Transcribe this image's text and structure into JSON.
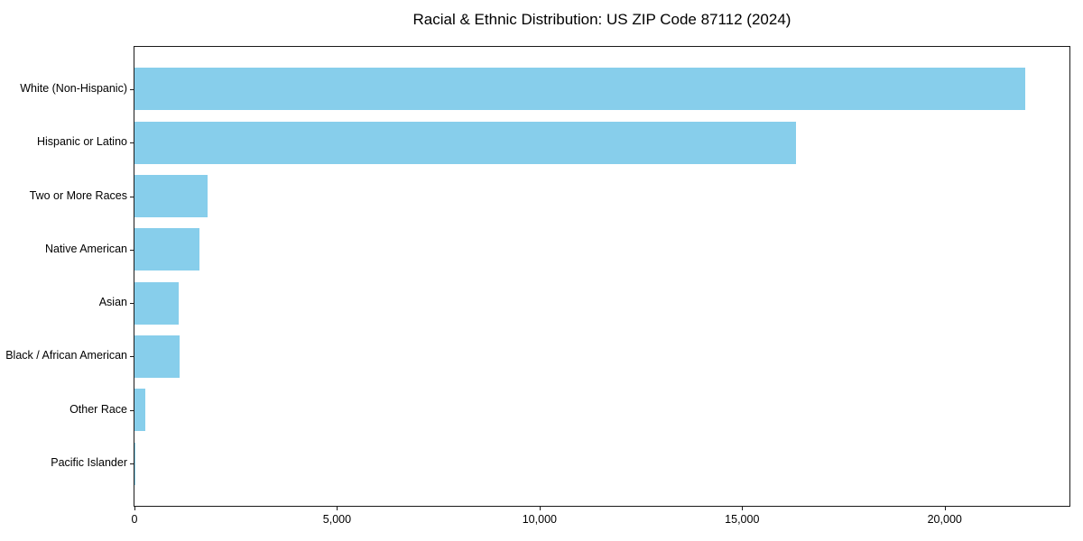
{
  "chart_data": {
    "type": "bar",
    "orientation": "horizontal",
    "title": "Racial & Ethnic Distribution: US ZIP Code 87112 (2024)",
    "categories": [
      "White (Non-Hispanic)",
      "Hispanic or Latino",
      "Two or More Races",
      "Native American",
      "Asian",
      "Black / African American",
      "Other Race",
      "Pacific Islander"
    ],
    "values": [
      21980,
      16340,
      1810,
      1615,
      1090,
      1110,
      265,
      20
    ],
    "xlabel": "",
    "ylabel": "",
    "xlim": [
      0,
      23080
    ],
    "xticks": [
      0,
      5000,
      10000,
      15000,
      20000
    ],
    "xtick_labels": [
      "0",
      "5,000",
      "10,000",
      "15,000",
      "20,000"
    ],
    "bar_color": "#87CEEB",
    "frame_color": "#1a1a1a",
    "text_color": "#000000",
    "grid": false,
    "legend": null
  }
}
